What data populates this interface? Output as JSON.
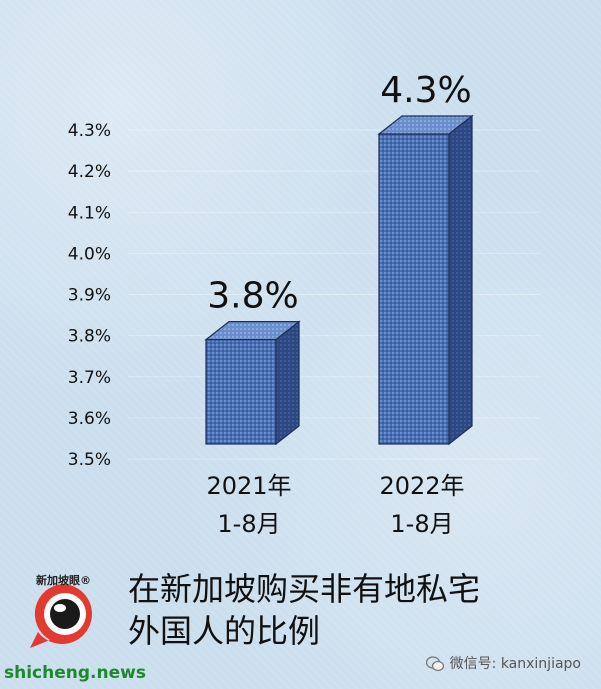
{
  "chart_data": {
    "type": "bar",
    "categories": [
      "2021年\n1-8月",
      "2022年\n1-8月"
    ],
    "values": [
      3.8,
      4.3
    ],
    "data_labels": [
      "3.8%",
      "4.3%"
    ],
    "ylim": [
      3.5,
      4.3
    ],
    "yticks": [
      "3.5%",
      "3.6%",
      "3.7%",
      "3.8%",
      "3.9%",
      "4.0%",
      "4.1%",
      "4.2%",
      "4.3%"
    ],
    "ytick_values": [
      3.5,
      3.6,
      3.7,
      3.8,
      3.9,
      4.0,
      4.1,
      4.2,
      4.3
    ],
    "grid": true,
    "style": "3d-textured-bars"
  },
  "caption": {
    "line1": "在新加坡购买非有地私宅",
    "line2": "外国人的比例"
  },
  "logo": {
    "text": "新加坡眼®",
    "icon": "eye-chat-bubble-logo"
  },
  "footer": {
    "site": "shicheng.news",
    "wechat": "微信号: kanxinjiapo",
    "wechat_icon": "wechat-icon"
  },
  "colors": {
    "bar_front": "#4a6fb5",
    "bar_top": "#5f86c8",
    "bar_side": "#2c4781",
    "background": "#cbdeee"
  }
}
